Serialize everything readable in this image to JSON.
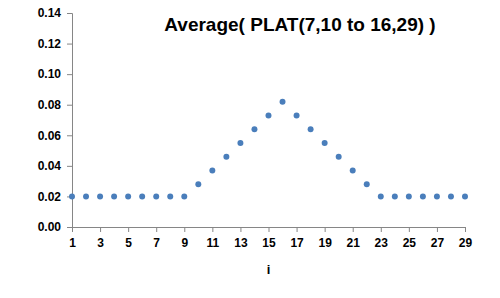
{
  "chart_data": {
    "type": "scatter",
    "title": "Average( PLAT(7,10 to 16,29) )",
    "x_label": "i",
    "x": [
      1,
      2,
      3,
      4,
      5,
      6,
      7,
      8,
      9,
      10,
      11,
      12,
      13,
      14,
      15,
      16,
      17,
      18,
      19,
      20,
      21,
      22,
      23,
      24,
      25,
      26,
      27,
      28,
      29
    ],
    "series": [
      {
        "name": null,
        "color": "#4a7ebb",
        "marker": "circle",
        "values": [
          0.02,
          0.02,
          0.02,
          0.02,
          0.02,
          0.02,
          0.02,
          0.02,
          0.02,
          0.028,
          0.037,
          0.046,
          0.055,
          0.064,
          0.073,
          0.082,
          0.073,
          0.064,
          0.055,
          0.046,
          0.037,
          0.028,
          0.02,
          0.02,
          0.02,
          0.02,
          0.02,
          0.02,
          0.02
        ]
      }
    ],
    "xlim": [
      1,
      29
    ],
    "xticks": [
      1,
      3,
      5,
      7,
      9,
      11,
      13,
      15,
      17,
      19,
      21,
      23,
      25,
      27,
      29
    ],
    "ylim": [
      0,
      0.14
    ],
    "yticks": [
      {
        "value": 0,
        "label": "0.00"
      },
      {
        "value": 0.02,
        "label": "0.02"
      },
      {
        "value": 0.04,
        "label": "0.04"
      },
      {
        "value": 0.06,
        "label": "0.06"
      },
      {
        "value": 0.08,
        "label": "0.08"
      },
      {
        "value": 0.1,
        "label": "0.10"
      },
      {
        "value": 0.12,
        "label": "0.12"
      },
      {
        "value": 0.14,
        "label": "0.14"
      }
    ],
    "grid": false
  }
}
